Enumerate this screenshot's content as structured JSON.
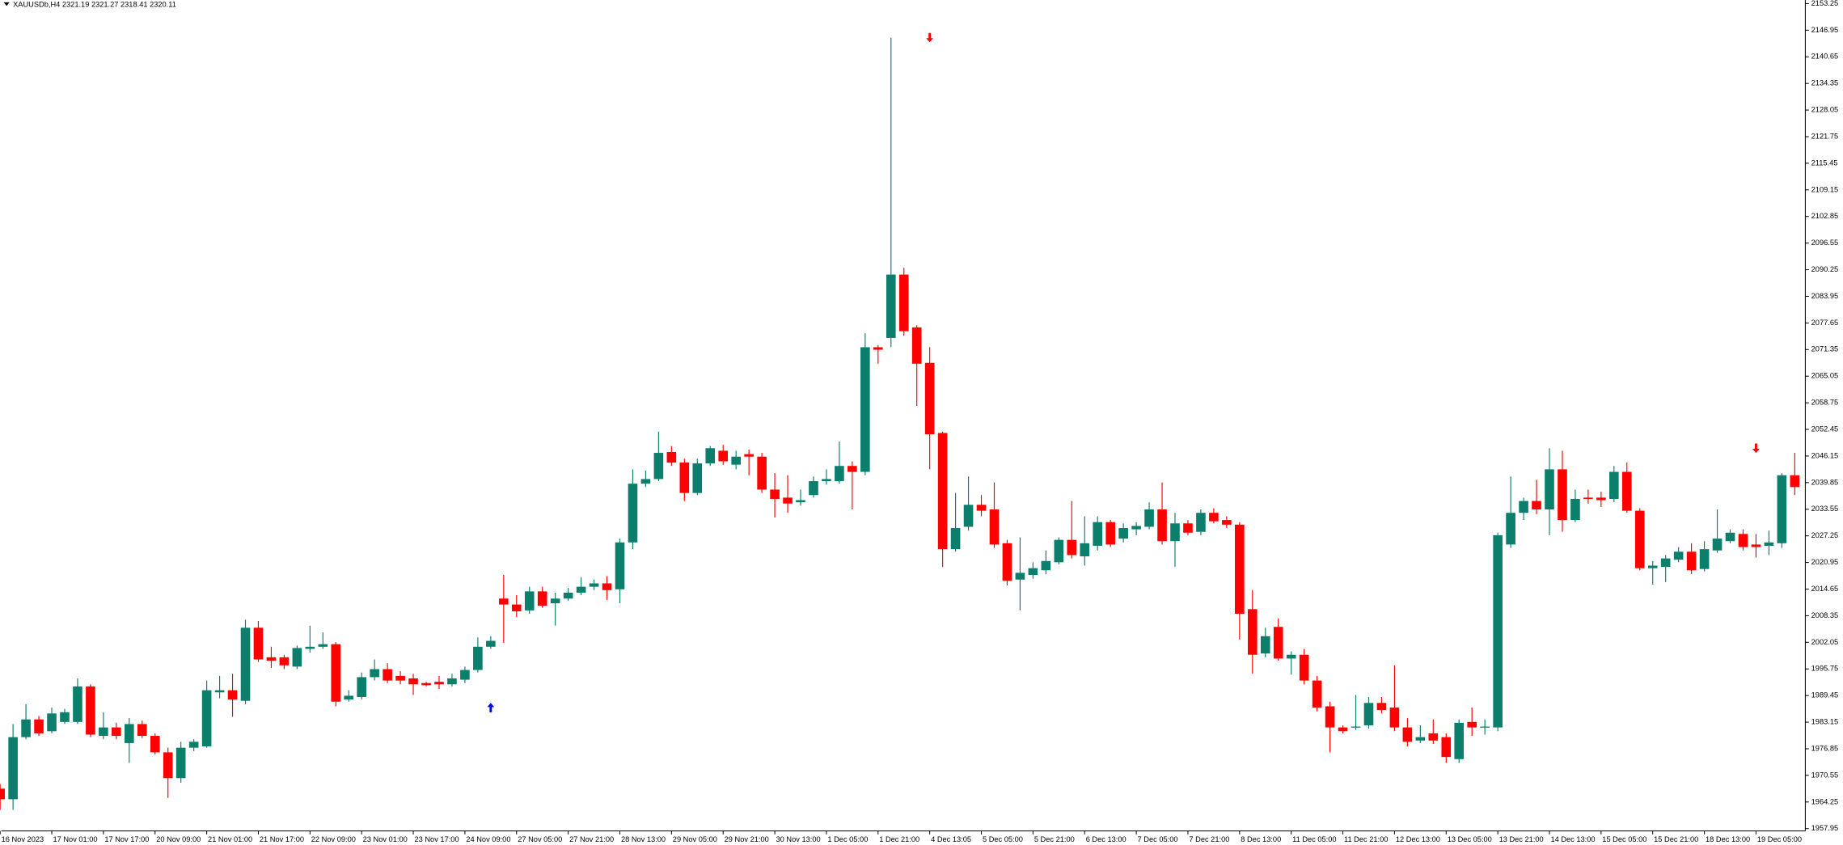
{
  "chart_data": {
    "type": "candlestick",
    "title": "XAUUSDb,H4  2321.19 2321.27 2318.41 2320.11",
    "up_color": "#0b7f6c",
    "down_color": "#ff0000",
    "categories": [
      "16 Nov 2023",
      null,
      null,
      null,
      "17 Nov 01:00",
      null,
      null,
      null,
      "17 Nov 17:00",
      null,
      null,
      null,
      "20 Nov 09:00",
      null,
      null,
      null,
      "21 Nov 01:00",
      null,
      null,
      null,
      "21 Nov 17:00",
      null,
      null,
      null,
      "22 Nov 09:00",
      null,
      null,
      null,
      "23 Nov 01:00",
      null,
      null,
      null,
      "23 Nov 17:00",
      null,
      null,
      null,
      "24 Nov 09:00",
      null,
      null,
      null,
      "27 Nov 05:00",
      null,
      null,
      null,
      "27 Nov 21:00",
      null,
      null,
      null,
      "28 Nov 13:00",
      null,
      null,
      null,
      "29 Nov 05:00",
      null,
      null,
      null,
      "29 Nov 21:00",
      null,
      null,
      null,
      "30 Nov 13:00",
      null,
      null,
      null,
      "1 Dec 05:00",
      null,
      null,
      null,
      "1 Dec 21:00",
      null,
      null,
      null,
      "4 Dec 13:05",
      null,
      null,
      null,
      "5 Dec 05:00",
      null,
      null,
      null,
      "5 Dec 21:00",
      null,
      null,
      null,
      "6 Dec 13:00",
      null,
      null,
      null,
      "7 Dec 05:00",
      null,
      null,
      null,
      "7 Dec 21:00",
      null,
      null,
      null,
      "8 Dec 13:00",
      null,
      null,
      null,
      "11 Dec 05:00",
      null,
      null,
      null,
      "11 Dec 21:00",
      null,
      null,
      null,
      "12 Dec 13:00",
      null,
      null,
      null,
      "13 Dec 05:00",
      null,
      null,
      null,
      "13 Dec 21:00",
      null,
      null,
      null,
      "14 Dec 13:00",
      null,
      null,
      null,
      "15 Dec 05:00",
      null,
      null,
      null,
      "15 Dec 21:00",
      null,
      null,
      null,
      "18 Dec 13:00",
      null,
      null,
      null,
      "19 Dec 05:00",
      null,
      null,
      null
    ],
    "open": [
      1967.4,
      1964.9,
      1979.6,
      1983.8,
      1981.0,
      1983.2,
      1983.2,
      1991.6,
      1979.9,
      1981.9,
      1978.2,
      1982.7,
      1979.9,
      1976.0,
      1969.9,
      1977.1,
      1977.4,
      1990.2,
      1990.7,
      1988.2,
      2005.5,
      1998.5,
      1998.5,
      1996.3,
      2000.5,
      2001.0,
      2001.6,
      1988.5,
      1989.1,
      1993.8,
      1995.7,
      1994.1,
      1993.5,
      1992.4,
      1992.7,
      1992.1,
      1993.2,
      1995.5,
      2001.0,
      2012.4,
      2011.0,
      2009.6,
      2014.1,
      2011.3,
      2012.4,
      2013.8,
      2015.2,
      2016.0,
      2014.6,
      2025.7,
      2039.6,
      2040.7,
      2047.1,
      2044.6,
      2037.4,
      2044.4,
      2047.4,
      2044.1,
      2046.6,
      2046.0,
      2038.2,
      2036.3,
      2035.2,
      2036.9,
      2040.2,
      2040.2,
      2043.8,
      2042.4,
      2071.9,
      2074.1,
      2089.1,
      2076.6,
      2068.2,
      2051.6,
      2024.1,
      2029.4,
      2034.6,
      2033.5,
      2025.5,
      2016.9,
      2018.0,
      2019.1,
      2021.0,
      2026.3,
      2022.4,
      2024.9,
      2030.5,
      2026.6,
      2028.8,
      2029.4,
      2033.5,
      2026.0,
      2030.2,
      2028.2,
      2032.7,
      2031.0,
      2029.9,
      2009.9,
      1999.4,
      2005.7,
      1998.2,
      1999.1,
      1993.0,
      1986.9,
      1981.9,
      1981.9,
      1982.4,
      1987.7,
      1986.6,
      1981.9,
      1978.8,
      1980.5,
      1979.6,
      1974.4,
      1983.2,
      1981.9,
      1981.9,
      2025.2,
      2032.7,
      2035.5,
      2033.5,
      2043.0,
      2031.0,
      2036.3,
      2036.3,
      2036.0,
      2042.4,
      2033.2,
      2019.6,
      2019.9,
      2021.6,
      2023.5,
      2019.4,
      2023.8,
      2026.0,
      2027.7,
      2025.2,
      2024.9,
      2025.5,
      2041.6
    ],
    "high": [
      1968.5,
      1982.7,
      1987.4,
      1984.6,
      1986.6,
      1986.3,
      1993.5,
      1992.1,
      1985.5,
      1983.0,
      1984.1,
      1983.5,
      1980.5,
      1977.1,
      1978.5,
      1979.1,
      1993.0,
      1994.1,
      1994.6,
      2007.4,
      2007.1,
      2001.0,
      1999.1,
      2001.3,
      2006.0,
      2004.4,
      2002.1,
      1990.7,
      1994.9,
      1998.0,
      1997.1,
      1995.2,
      1994.6,
      1992.7,
      1994.1,
      1994.6,
      1996.3,
      2003.2,
      2003.5,
      2018.0,
      2013.2,
      2015.2,
      2015.2,
      2013.8,
      2014.9,
      2017.4,
      2016.9,
      2017.7,
      2026.6,
      2043.0,
      2042.7,
      2051.9,
      2048.5,
      2045.5,
      2045.5,
      2048.5,
      2048.8,
      2047.4,
      2047.7,
      2046.9,
      2042.1,
      2041.6,
      2038.2,
      2041.3,
      2043.0,
      2049.6,
      2044.9,
      2075.2,
      2072.4,
      2145.2,
      2090.7,
      2077.1,
      2071.9,
      2051.9,
      2037.4,
      2041.3,
      2036.9,
      2039.9,
      2026.3,
      2026.9,
      2021.0,
      2023.8,
      2026.9,
      2035.5,
      2031.9,
      2031.9,
      2031.0,
      2030.2,
      2030.5,
      2035.2,
      2039.9,
      2032.7,
      2031.0,
      2033.5,
      2033.8,
      2031.9,
      2030.5,
      2014.4,
      2005.5,
      2007.7,
      1999.9,
      2000.5,
      1994.1,
      1988.0,
      1982.4,
      1989.6,
      1989.1,
      1989.1,
      1996.6,
      1984.1,
      1982.4,
      1983.8,
      1980.5,
      1983.8,
      1986.6,
      1983.8,
      2028.0,
      2041.3,
      2036.3,
      2040.5,
      2048.0,
      2047.4,
      2038.2,
      2038.2,
      2037.7,
      2043.8,
      2044.6,
      2033.8,
      2021.3,
      2022.7,
      2024.6,
      2025.5,
      2026.0,
      2033.5,
      2028.8,
      2028.8,
      2027.7,
      2028.5,
      2042.1,
      2046.9
    ],
    "low": [
      1962.4,
      1962.4,
      1979.1,
      1979.9,
      1980.5,
      1982.7,
      1982.7,
      1979.6,
      1979.1,
      1979.1,
      1973.5,
      1979.4,
      1975.5,
      1965.2,
      1968.8,
      1976.3,
      1977.1,
      1988.8,
      1984.4,
      1987.4,
      1997.4,
      1996.0,
      1995.7,
      1995.7,
      1999.6,
      2000.5,
      1986.9,
      1988.0,
      1988.5,
      1993.0,
      1992.4,
      1992.1,
      1989.6,
      1991.6,
      1991.0,
      1991.6,
      1992.4,
      1994.9,
      2000.5,
      2001.9,
      2008.0,
      2008.8,
      2010.2,
      2006.0,
      2011.9,
      2013.2,
      2014.4,
      2012.1,
      2011.3,
      2024.1,
      2038.8,
      2040.2,
      2043.8,
      2035.5,
      2036.9,
      2043.8,
      2044.1,
      2043.0,
      2041.6,
      2037.4,
      2031.6,
      2032.7,
      2034.4,
      2036.3,
      2039.4,
      2039.6,
      2033.5,
      2041.6,
      2068.0,
      2071.9,
      2074.6,
      2058.0,
      2043.0,
      2019.9,
      2023.5,
      2028.5,
      2031.9,
      2024.4,
      2015.5,
      2009.6,
      2017.1,
      2018.2,
      2020.5,
      2021.9,
      2020.2,
      2023.8,
      2024.6,
      2025.7,
      2027.4,
      2028.8,
      2025.2,
      2019.9,
      2027.4,
      2027.4,
      2030.2,
      2029.1,
      2002.7,
      1994.6,
      1998.5,
      1997.7,
      1994.4,
      1992.1,
      1985.7,
      1976.0,
      1980.5,
      1981.3,
      1981.6,
      1985.2,
      1981.0,
      1977.4,
      1978.2,
      1978.0,
      1973.5,
      1973.5,
      1979.9,
      1980.2,
      1981.0,
      2024.4,
      2031.0,
      2032.4,
      2027.4,
      2028.2,
      2030.5,
      2034.9,
      2034.1,
      2035.2,
      2032.7,
      2019.1,
      2015.7,
      2016.3,
      2021.0,
      2018.2,
      2018.8,
      2023.2,
      2025.5,
      2023.8,
      2022.1,
      2022.7,
      2024.4,
      2036.9
    ],
    "close": [
      1964.9,
      1979.6,
      1983.8,
      1980.5,
      1985.2,
      1985.5,
      1991.6,
      1980.2,
      1981.9,
      1979.9,
      1982.7,
      1979.9,
      1976.0,
      1969.9,
      1977.1,
      1978.5,
      1990.7,
      1990.7,
      1988.5,
      2005.5,
      1998.0,
      1997.7,
      1996.6,
      2000.7,
      2001.0,
      2001.6,
      1988.0,
      1989.4,
      1993.8,
      1995.7,
      1993.0,
      1993.0,
      1992.1,
      1991.9,
      1992.1,
      1993.5,
      1995.5,
      2001.0,
      2002.4,
      2011.0,
      2009.4,
      2014.1,
      2010.7,
      2012.4,
      2013.8,
      2015.2,
      2016.0,
      2014.4,
      2025.7,
      2039.6,
      2040.7,
      2046.9,
      2044.6,
      2037.4,
      2044.4,
      2048.0,
      2044.9,
      2046.0,
      2046.0,
      2038.2,
      2036.0,
      2034.9,
      2035.7,
      2040.2,
      2040.7,
      2043.8,
      2042.4,
      2071.9,
      2071.3,
      2089.1,
      2075.7,
      2068.0,
      2051.3,
      2024.1,
      2029.1,
      2034.6,
      2033.2,
      2025.2,
      2016.6,
      2018.5,
      2019.6,
      2021.3,
      2026.3,
      2022.7,
      2025.5,
      2030.5,
      2025.2,
      2029.1,
      2029.6,
      2033.5,
      2026.0,
      2030.2,
      2028.0,
      2032.7,
      2030.7,
      2029.9,
      2008.8,
      1999.1,
      2003.5,
      1998.2,
      1999.1,
      1993.0,
      1986.6,
      1981.9,
      1981.0,
      1982.1,
      1987.7,
      1986.0,
      1981.9,
      1978.5,
      1979.6,
      1978.8,
      1974.9,
      1983.0,
      1981.9,
      1982.1,
      2027.4,
      2032.7,
      2035.5,
      2033.5,
      2043.0,
      2031.0,
      2036.0,
      2036.0,
      2035.7,
      2042.4,
      2033.2,
      2019.6,
      2020.2,
      2021.9,
      2023.5,
      2019.1,
      2024.1,
      2026.6,
      2028.0,
      2024.6,
      2024.6,
      2025.7,
      2041.6,
      2038.8
    ],
    "ylim": [
      1957.4,
      2154.1
    ],
    "yticks": [
      2153.25,
      2146.95,
      2140.65,
      2134.35,
      2128.05,
      2121.75,
      2115.45,
      2109.15,
      2102.85,
      2096.55,
      2090.25,
      2083.95,
      2077.65,
      2071.35,
      2065.05,
      2058.75,
      2052.45,
      2046.15,
      2039.85,
      2033.55,
      2027.25,
      2020.95,
      2014.65,
      2008.35,
      2002.05,
      1995.75,
      1989.45,
      1983.15,
      1976.85,
      1970.55,
      1964.25,
      1957.95
    ],
    "signals": [
      {
        "index": 38,
        "price": 1986.6,
        "direction": "up",
        "color": "#0000ff"
      },
      {
        "index": 72,
        "price": 2145.2,
        "direction": "down",
        "color": "#ff0000"
      },
      {
        "index": 136,
        "price": 2048.0,
        "direction": "down",
        "color": "#ff0000"
      }
    ]
  }
}
